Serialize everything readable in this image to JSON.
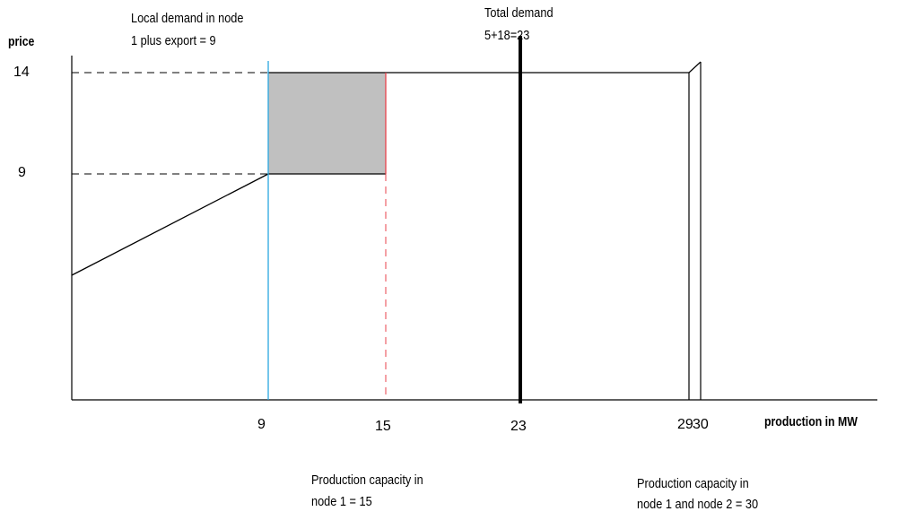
{
  "axes": {
    "y_label": "price",
    "x_label": "production in MW",
    "y_ticks": [
      "14",
      "9"
    ],
    "x_ticks": [
      "9",
      "15",
      "23",
      "29",
      "30"
    ]
  },
  "annotations": {
    "local_demand": [
      "Local demand in node",
      "1 plus export  = 9"
    ],
    "total_demand": [
      "Total demand",
      "5+18=23"
    ],
    "capacity_node1": [
      "Production capacity in",
      "node 1 = 15"
    ],
    "capacity_both": [
      "Production capacity in",
      "node 1 and node 2 = 30"
    ]
  },
  "colors": {
    "shaded_area": "#c0c0c0",
    "blue_line": "#29a8e0",
    "red_line": "#e8424b",
    "black": "#000000"
  }
}
